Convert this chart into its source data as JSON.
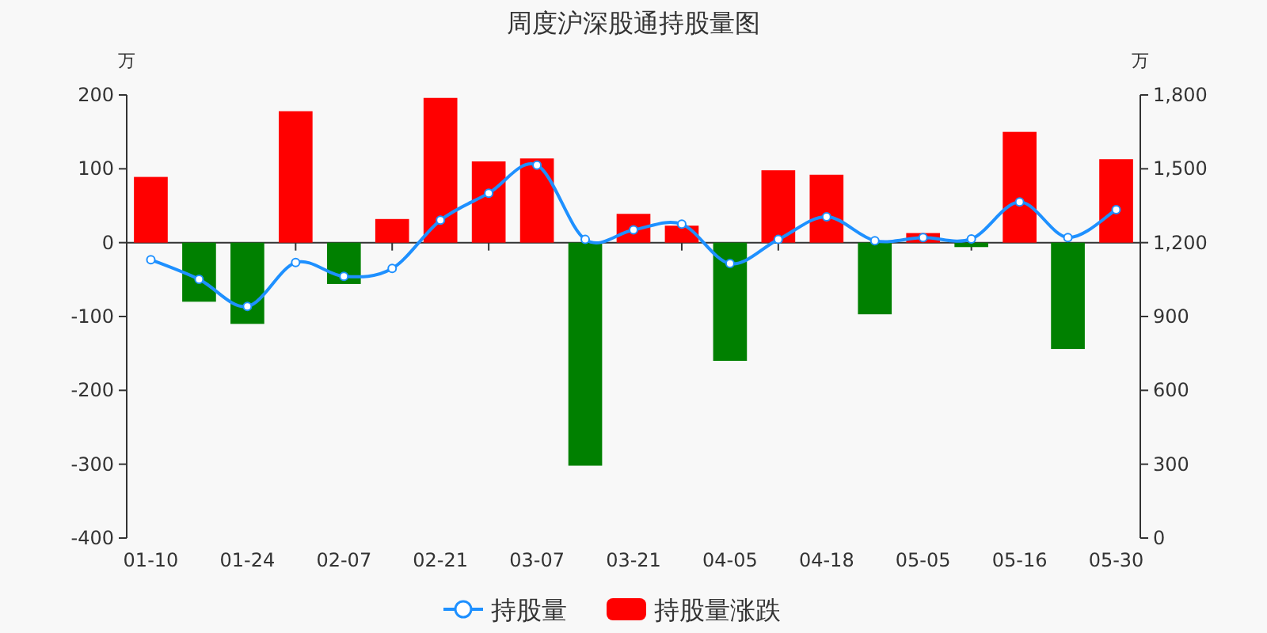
{
  "chart_data": {
    "type": "bar",
    "title": "周度沪深股通持股量图",
    "ylabel": "万",
    "y2label": "万",
    "categories": [
      "01-10",
      null,
      "01-24",
      null,
      "02-07",
      null,
      "02-21",
      null,
      "03-07",
      null,
      "03-21",
      null,
      "04-05",
      null,
      "04-18",
      null,
      "05-05",
      null,
      "05-16",
      null,
      "05-30"
    ],
    "series": [
      {
        "name": "持股量",
        "type": "line",
        "axis": "y2",
        "color": "#1e90ff",
        "marker": "circle",
        "values": [
          1131,
          1051,
          941,
          1119,
          1063,
          1095,
          1291,
          1401,
          1515,
          1213,
          1252,
          1275,
          1115,
          1213,
          1305,
          1208,
          1221,
          1215,
          1365,
          1221,
          1334
        ]
      },
      {
        "name": "持股量涨跌",
        "color": "#ff0000",
        "colors": [
          "#ff0000",
          "#008000",
          "#008000",
          "#ff0000",
          "#008000",
          "#ff0000",
          "#ff0000",
          "#ff0000",
          "#ff0000",
          "#008000",
          "#ff0000",
          "#ff0000",
          "#008000",
          "#ff0000",
          "#ff0000",
          "#008000",
          "#ff0000",
          "#008000",
          "#ff0000",
          "#008000",
          "#ff0000"
        ],
        "values": [
          89,
          -80,
          -110,
          178,
          -56,
          32,
          196,
          110,
          114,
          -302,
          39,
          23,
          -160,
          98,
          92,
          -97,
          13,
          -6,
          150,
          -144,
          113
        ]
      }
    ],
    "ylim": [
      -400,
      200
    ],
    "yticks": [
      -400,
      -300,
      -200,
      -100,
      0,
      100,
      200
    ],
    "y2lim": [
      0,
      1800
    ],
    "y2ticks": [
      0,
      300,
      600,
      900,
      {
        "value": 1200,
        "label": "1,200"
      },
      {
        "value": 1500,
        "label": "1,500"
      },
      {
        "value": 1800,
        "label": "1,800"
      }
    ],
    "legend": "bottom"
  }
}
